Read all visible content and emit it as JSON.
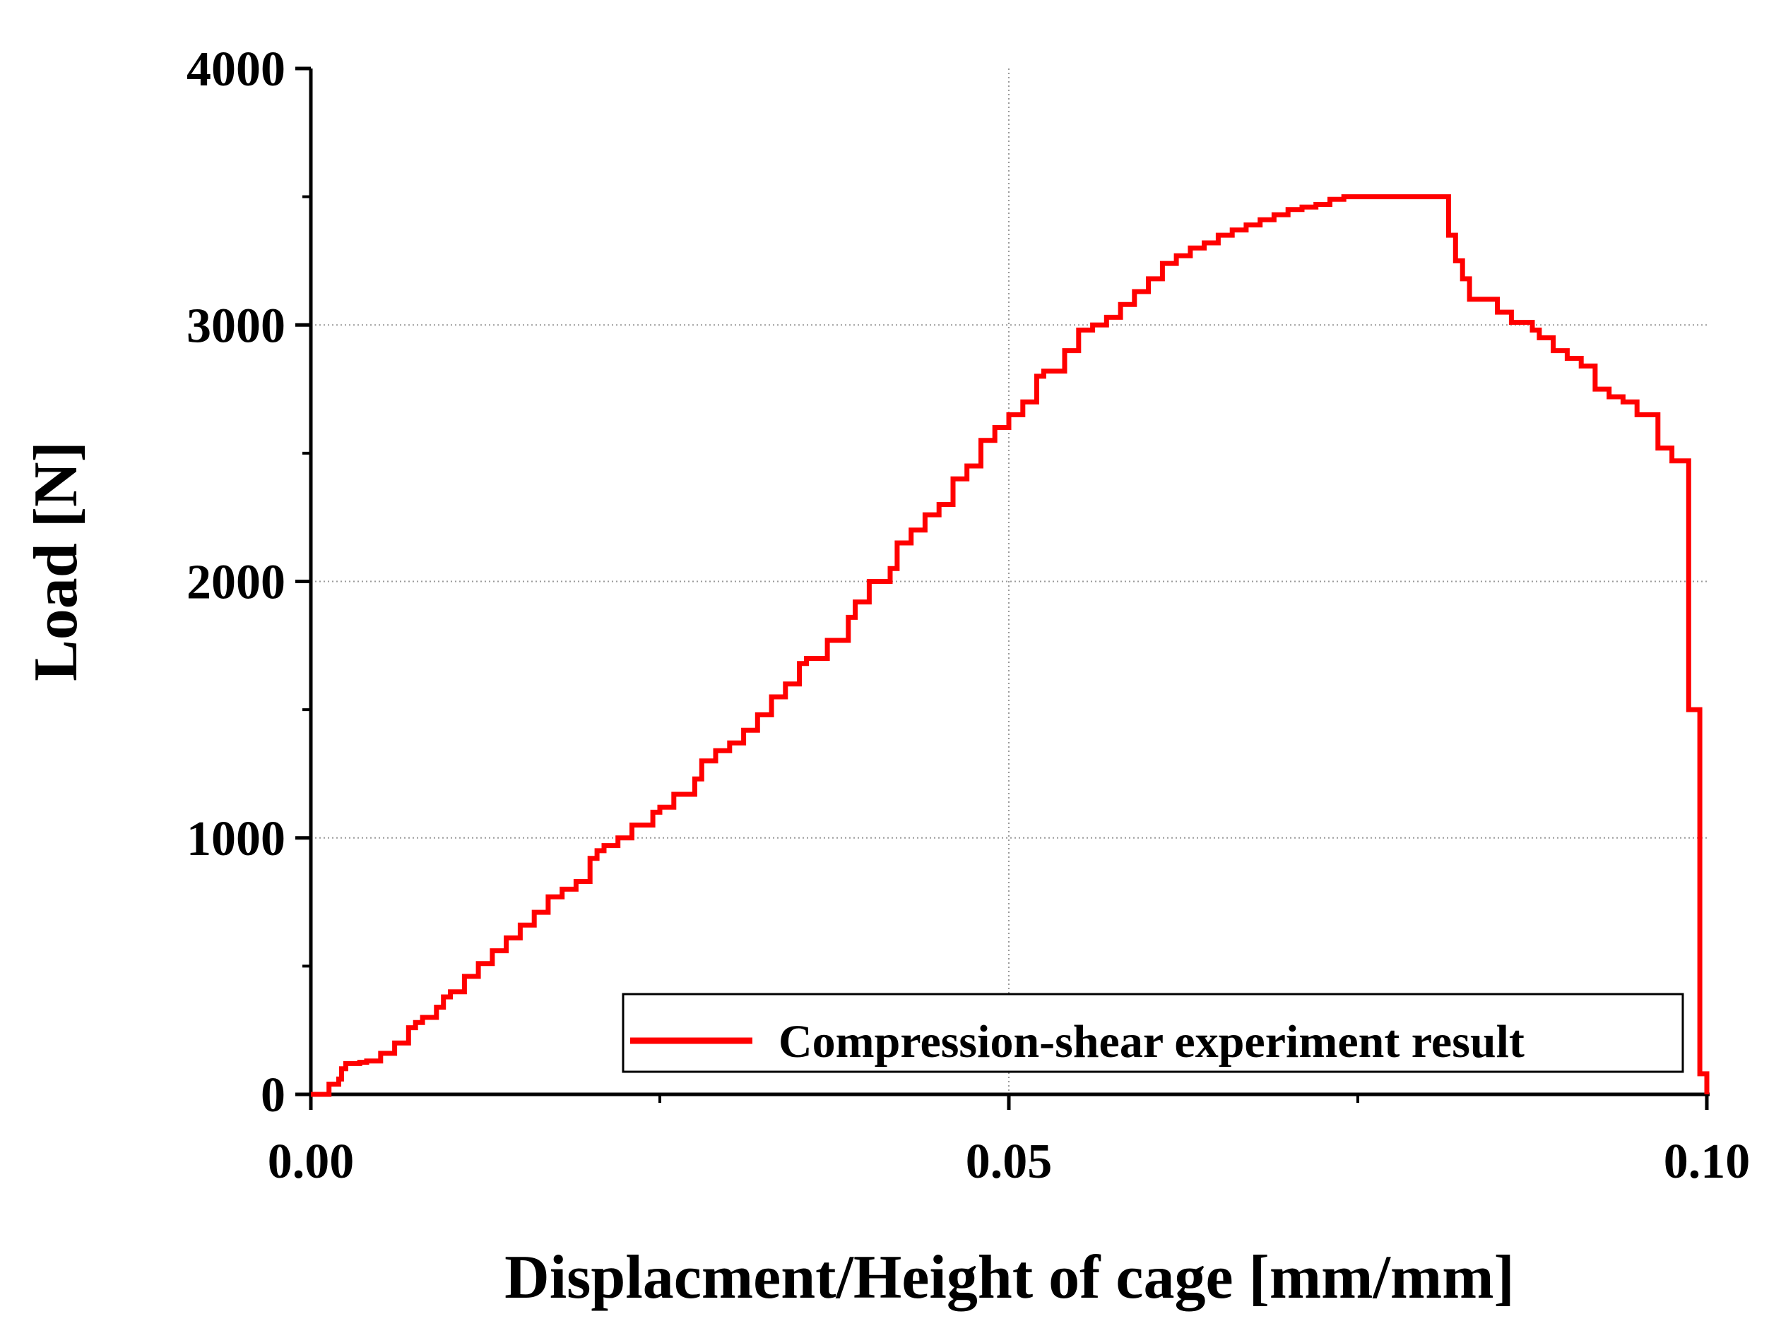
{
  "chart_data": {
    "type": "line",
    "title": "",
    "xlabel": "Displacment/Height of cage [mm/mm]",
    "ylabel": "Load [N]",
    "xlim": [
      0.0,
      0.1
    ],
    "ylim": [
      0,
      4000
    ],
    "x_ticks": [
      0.0,
      0.05,
      0.1
    ],
    "x_tick_labels": [
      "0.00",
      "0.05",
      "0.10"
    ],
    "x_minor_ticks": [
      0.025,
      0.075
    ],
    "y_ticks": [
      0,
      1000,
      2000,
      3000,
      4000
    ],
    "y_tick_labels": [
      "0",
      "1000",
      "2000",
      "3000",
      "4000"
    ],
    "y_minor_ticks": [
      500,
      1500,
      2500,
      3500
    ],
    "grid": true,
    "legend_position": "bottom-right",
    "series": [
      {
        "name": "Compression-shear experiment result",
        "color": "#ff0000",
        "x": [
          0.0,
          0.0012,
          0.0013,
          0.002,
          0.0022,
          0.0025,
          0.0035,
          0.004,
          0.005,
          0.006,
          0.007,
          0.0075,
          0.008,
          0.009,
          0.0095,
          0.01,
          0.011,
          0.012,
          0.013,
          0.014,
          0.015,
          0.016,
          0.017,
          0.018,
          0.019,
          0.02,
          0.0205,
          0.021,
          0.022,
          0.023,
          0.0245,
          0.025,
          0.026,
          0.0275,
          0.028,
          0.029,
          0.03,
          0.031,
          0.032,
          0.033,
          0.034,
          0.035,
          0.0355,
          0.037,
          0.0385,
          0.039,
          0.04,
          0.0415,
          0.042,
          0.043,
          0.044,
          0.045,
          0.046,
          0.047,
          0.048,
          0.049,
          0.05,
          0.051,
          0.052,
          0.0525,
          0.054,
          0.055,
          0.056,
          0.057,
          0.058,
          0.059,
          0.06,
          0.061,
          0.062,
          0.063,
          0.064,
          0.065,
          0.066,
          0.067,
          0.068,
          0.069,
          0.07,
          0.071,
          0.072,
          0.073,
          0.074,
          0.075,
          0.076,
          0.077,
          0.078,
          0.0805,
          0.081,
          0.0815,
          0.082,
          0.0825,
          0.083,
          0.085,
          0.086,
          0.0875,
          0.088,
          0.089,
          0.09,
          0.091,
          0.092,
          0.093,
          0.094,
          0.095,
          0.0965,
          0.0975,
          0.0985,
          0.0987,
          0.099,
          0.0995,
          0.1
        ],
        "y": [
          0,
          0,
          40,
          60,
          100,
          120,
          125,
          130,
          160,
          200,
          260,
          280,
          300,
          340,
          380,
          400,
          460,
          510,
          560,
          610,
          660,
          710,
          770,
          800,
          830,
          920,
          950,
          970,
          1000,
          1050,
          1100,
          1120,
          1170,
          1230,
          1300,
          1340,
          1370,
          1420,
          1480,
          1550,
          1600,
          1680,
          1700,
          1770,
          1860,
          1920,
          2000,
          2050,
          2150,
          2200,
          2260,
          2300,
          2400,
          2450,
          2550,
          2600,
          2650,
          2700,
          2800,
          2820,
          2900,
          2980,
          3000,
          3030,
          3080,
          3130,
          3180,
          3240,
          3270,
          3300,
          3320,
          3350,
          3370,
          3390,
          3410,
          3430,
          3450,
          3460,
          3470,
          3490,
          3500,
          3500,
          3500,
          3500,
          3500,
          3500,
          3500,
          3350,
          3250,
          3180,
          3100,
          3050,
          3010,
          2980,
          2950,
          2900,
          2870,
          2840,
          2750,
          2720,
          2700,
          2650,
          2520,
          2470,
          2470,
          1500,
          1500,
          80,
          0
        ]
      }
    ]
  }
}
